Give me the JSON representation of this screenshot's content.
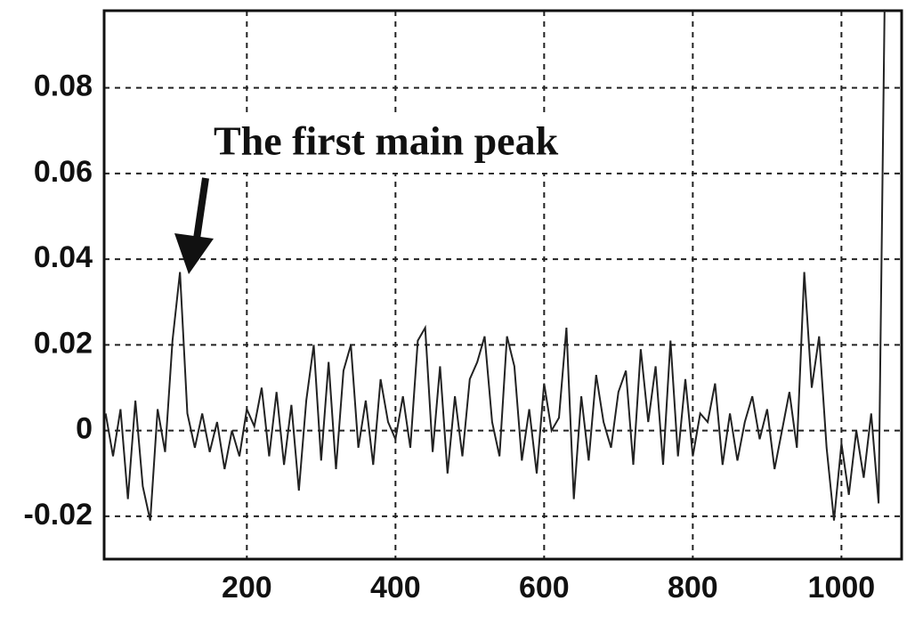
{
  "chart_data": {
    "type": "line",
    "annotation": "The first main peak",
    "xlim": [
      8,
      1081
    ],
    "ylim": [
      -0.03,
      0.098
    ],
    "xticks": [
      200,
      400,
      600,
      800,
      1000
    ],
    "yticks": [
      -0.02,
      0,
      0.02,
      0.04,
      0.06,
      0.08
    ],
    "grid": true,
    "series": [
      {
        "color": "#222222",
        "x": [
          10,
          20,
          30,
          40,
          50,
          60,
          70,
          80,
          90,
          100,
          110,
          120,
          130,
          140,
          150,
          160,
          170,
          180,
          190,
          200,
          210,
          220,
          230,
          240,
          250,
          260,
          270,
          280,
          290,
          300,
          310,
          320,
          330,
          340,
          350,
          360,
          370,
          380,
          390,
          400,
          410,
          420,
          430,
          440,
          450,
          460,
          470,
          480,
          490,
          500,
          510,
          520,
          530,
          540,
          550,
          560,
          570,
          580,
          590,
          600,
          610,
          620,
          630,
          640,
          650,
          660,
          670,
          680,
          690,
          700,
          710,
          720,
          730,
          740,
          750,
          760,
          770,
          780,
          790,
          800,
          810,
          820,
          830,
          840,
          850,
          860,
          870,
          880,
          890,
          900,
          910,
          920,
          930,
          940,
          950,
          960,
          970,
          980,
          990,
          1000,
          1010,
          1020,
          1030,
          1040,
          1050,
          1058
        ],
        "values": [
          0.004,
          -0.006,
          0.005,
          -0.016,
          0.007,
          -0.013,
          -0.021,
          0.005,
          -0.005,
          0.021,
          0.037,
          0.004,
          -0.004,
          0.004,
          -0.005,
          0.002,
          -0.009,
          0.0,
          -0.006,
          0.005,
          0.001,
          0.01,
          -0.006,
          0.009,
          -0.008,
          0.006,
          -0.014,
          0.007,
          0.02,
          -0.007,
          0.016,
          -0.009,
          0.014,
          0.02,
          -0.004,
          0.007,
          -0.008,
          0.012,
          0.002,
          -0.002,
          0.008,
          -0.004,
          0.021,
          0.024,
          -0.005,
          0.015,
          -0.01,
          0.008,
          -0.006,
          0.012,
          0.016,
          0.022,
          0.002,
          -0.006,
          0.022,
          0.015,
          -0.007,
          0.005,
          -0.01,
          0.011,
          0.0,
          0.003,
          0.024,
          -0.016,
          0.008,
          -0.007,
          0.013,
          0.002,
          -0.004,
          0.009,
          0.014,
          -0.008,
          0.019,
          0.002,
          0.015,
          -0.008,
          0.021,
          -0.006,
          0.012,
          -0.006,
          0.004,
          0.002,
          0.011,
          -0.008,
          0.004,
          -0.007,
          0.002,
          0.008,
          -0.002,
          0.005,
          -0.009,
          0.0,
          0.009,
          -0.004,
          0.037,
          0.01,
          0.022,
          -0.004,
          -0.021,
          -0.003,
          -0.015,
          0.0,
          -0.011,
          0.004,
          -0.017,
          0.098
        ]
      }
    ]
  }
}
